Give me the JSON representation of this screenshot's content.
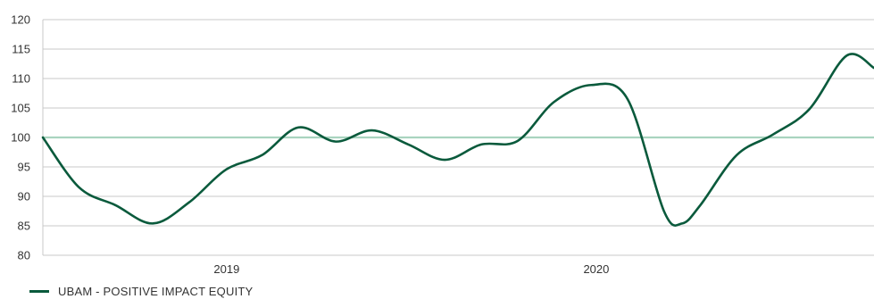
{
  "chart_data": {
    "type": "line",
    "title": "",
    "xlabel": "",
    "ylabel": "",
    "ylim": [
      80,
      120
    ],
    "y_ticks": [
      "80",
      "85",
      "90",
      "95",
      "100",
      "105",
      "110",
      "115",
      "120"
    ],
    "x_range": [
      "2018-10-01",
      "2021-01-01"
    ],
    "x_ticks": [
      {
        "label": "2019",
        "date": "2019-04-01"
      },
      {
        "label": "2020",
        "date": "2020-04-01"
      }
    ],
    "grid": true,
    "reference_line": {
      "value": 100,
      "color": "#a9d4bf"
    },
    "legend_position": "bottom-left",
    "series": [
      {
        "name": "UBAM - POSITIVE IMPACT EQUITY",
        "color": "#0a5a3c",
        "points": [
          {
            "x": "2018-10-01",
            "y": 100
          },
          {
            "x": "2018-11-06",
            "y": 91.5
          },
          {
            "x": "2018-12-12",
            "y": 88.5
          },
          {
            "x": "2019-01-18",
            "y": 85.4
          },
          {
            "x": "2019-02-23",
            "y": 89
          },
          {
            "x": "2019-03-31",
            "y": 94.5
          },
          {
            "x": "2019-05-06",
            "y": 97
          },
          {
            "x": "2019-06-11",
            "y": 101.7
          },
          {
            "x": "2019-07-18",
            "y": 99.3
          },
          {
            "x": "2019-08-23",
            "y": 101.2
          },
          {
            "x": "2019-09-28",
            "y": 98.8
          },
          {
            "x": "2019-11-03",
            "y": 96.2
          },
          {
            "x": "2019-12-09",
            "y": 98.8
          },
          {
            "x": "2020-01-14",
            "y": 99.4
          },
          {
            "x": "2020-02-19",
            "y": 106
          },
          {
            "x": "2020-03-27",
            "y": 108.9
          },
          {
            "x": "2020-05-02",
            "y": 106.5
          },
          {
            "x": "2020-06-07",
            "y": 87.5
          },
          {
            "x": "2020-06-25",
            "y": 85.4
          },
          {
            "x": "2020-07-13",
            "y": 88.5
          },
          {
            "x": "2020-08-18",
            "y": 97
          },
          {
            "x": "2020-09-23",
            "y": 100.5
          },
          {
            "x": "2020-10-29",
            "y": 104.8
          },
          {
            "x": "2020-12-05",
            "y": 113.9
          },
          {
            "x": "2021-01-01",
            "y": 111.8
          }
        ]
      }
    ]
  },
  "legend": {
    "label": "UBAM - POSITIVE IMPACT EQUITY"
  }
}
